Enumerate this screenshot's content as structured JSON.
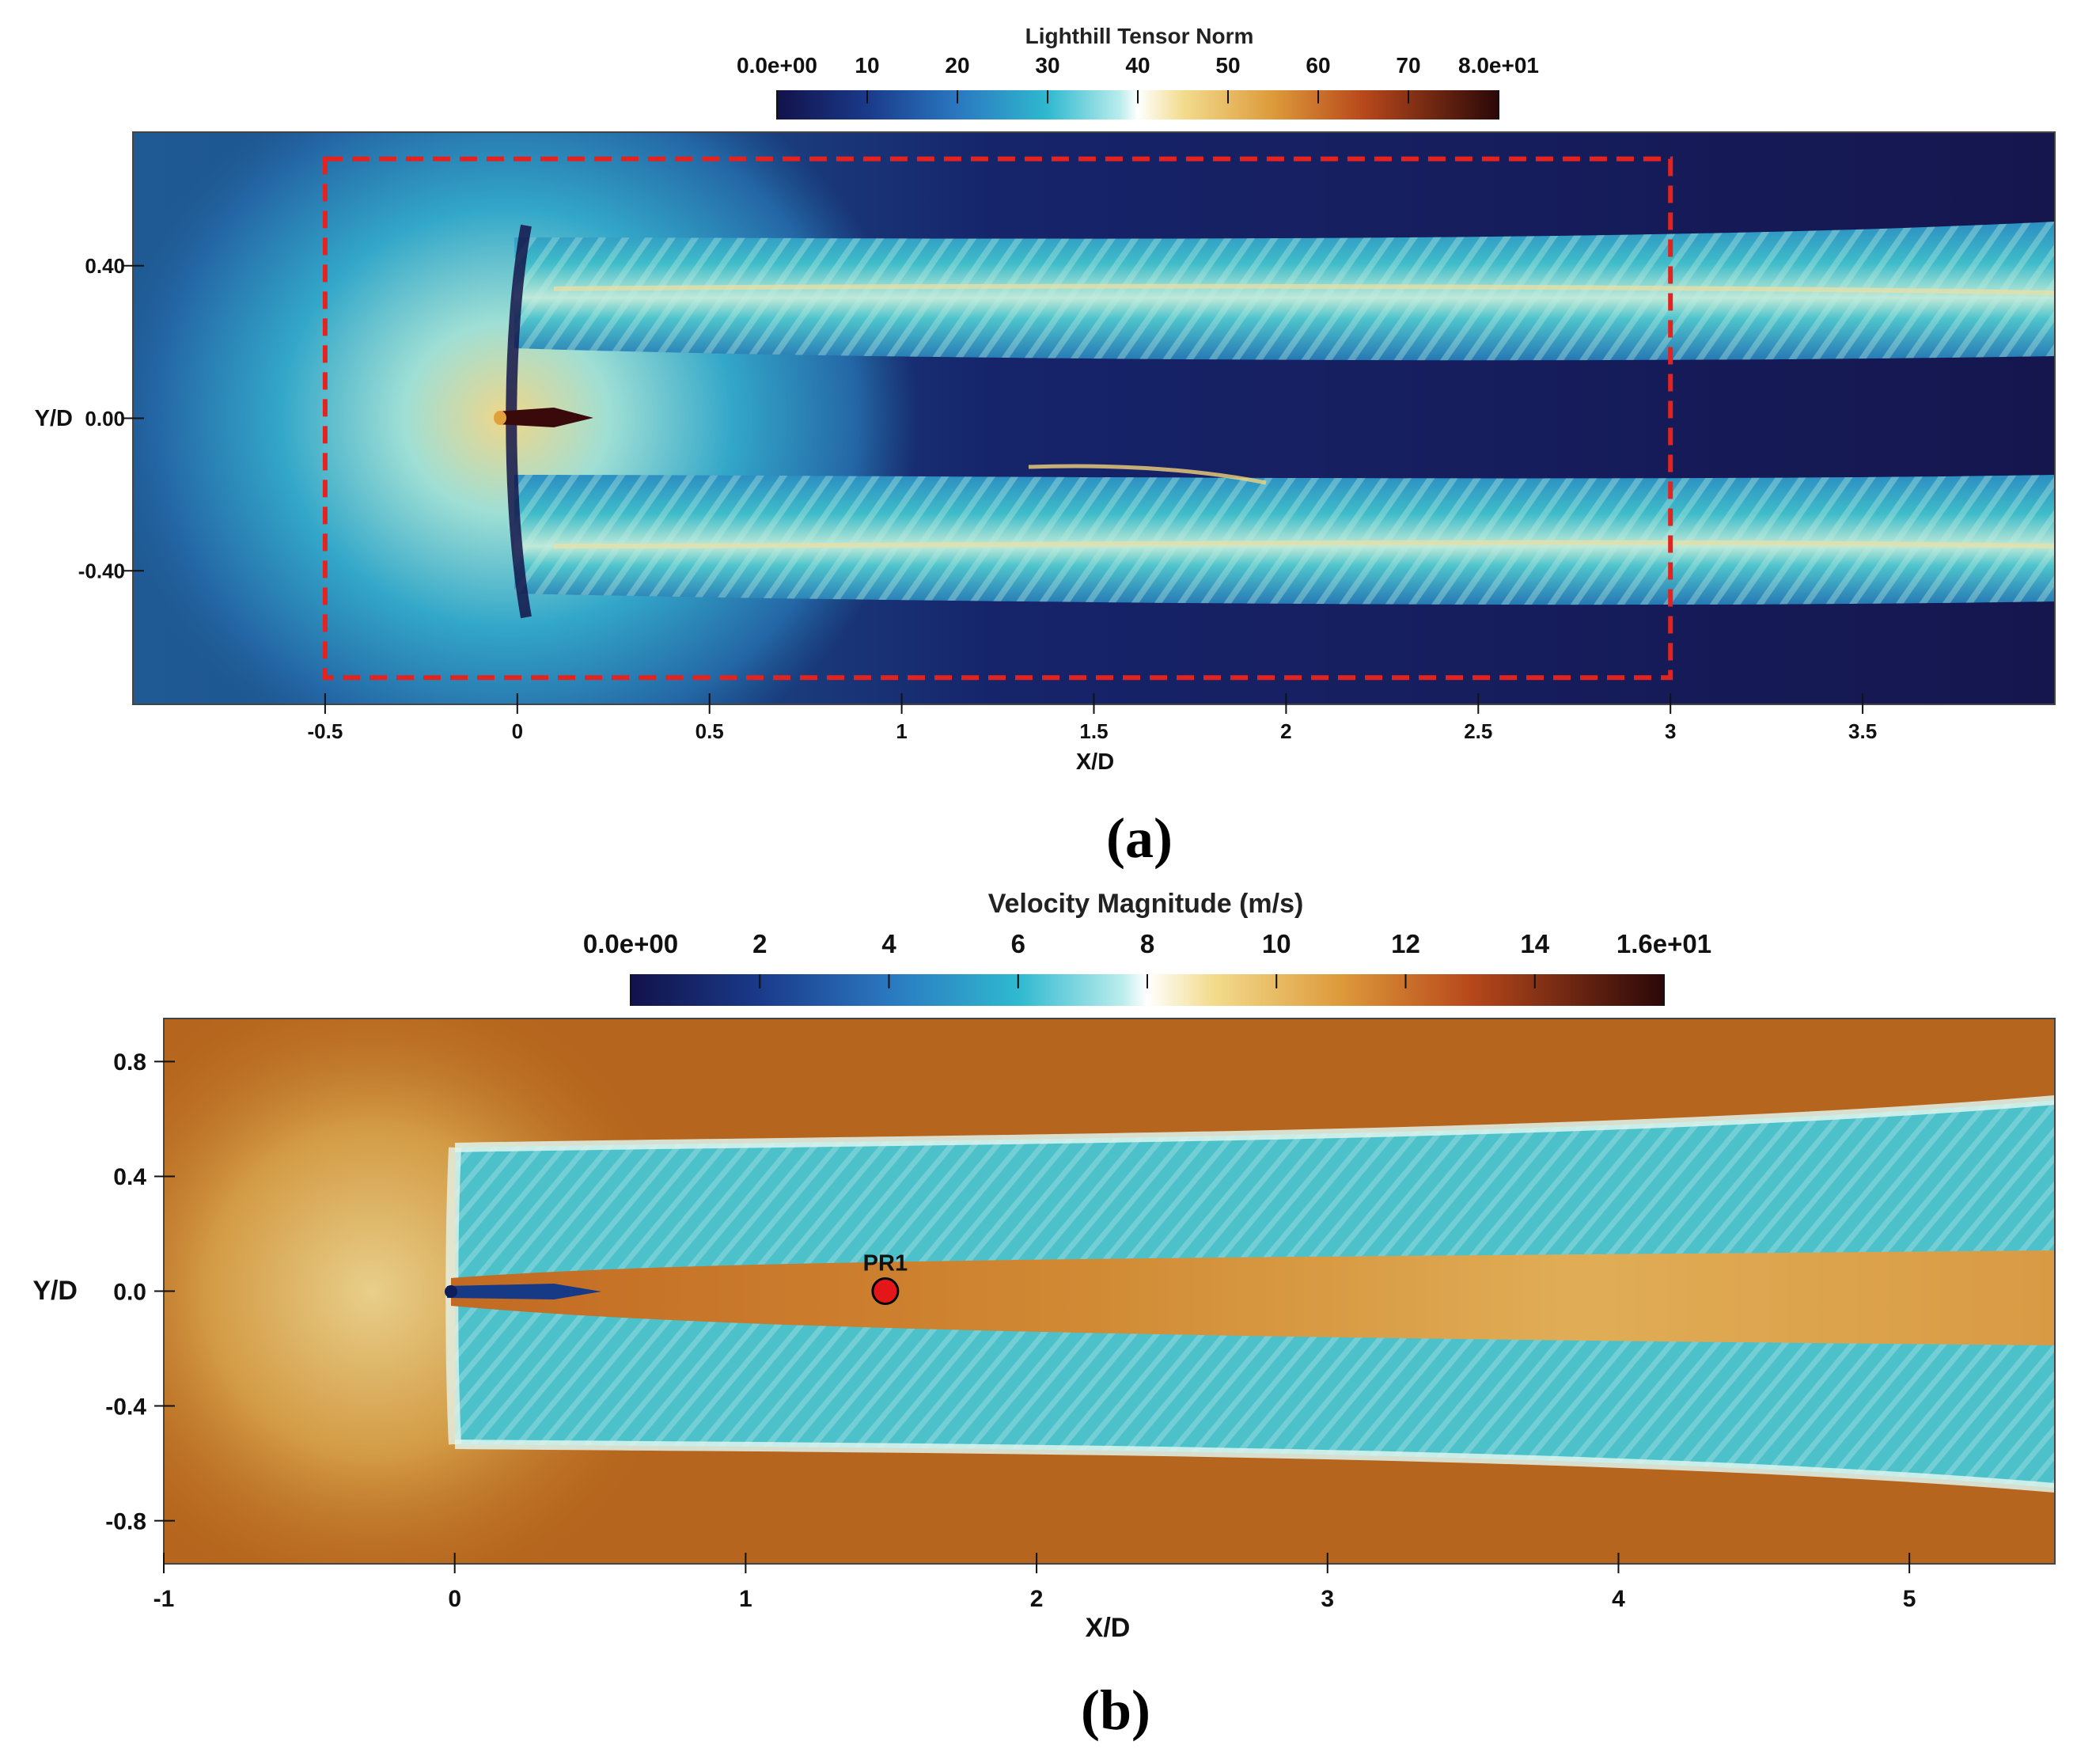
{
  "colors": {
    "field_dark": "#1c1e5c",
    "field_blue": "#1f5e98",
    "jet_cyan": "#3fbcc9",
    "jet_pale": "#9fe0d6",
    "orange_field": "#b5651d",
    "marker_red": "#e5161a",
    "box_red": "#e3231f"
  },
  "panels": [
    {
      "label": "(a)",
      "colorbar": {
        "title": "Lighthill Tensor Norm",
        "range": [
          0,
          80
        ],
        "tick_values": [
          0,
          10,
          20,
          30,
          40,
          50,
          60,
          70,
          80
        ],
        "tick_labels": [
          "0.0e+00",
          "10",
          "20",
          "30",
          "40",
          "50",
          "60",
          "70",
          "8.0e+01"
        ],
        "colormap": [
          {
            "v": 0,
            "c": "#12124a"
          },
          {
            "v": 10,
            "c": "#1a3a8a"
          },
          {
            "v": 20,
            "c": "#2a78c0"
          },
          {
            "v": 30,
            "c": "#2fb9cf"
          },
          {
            "v": 38,
            "c": "#b9ecec"
          },
          {
            "v": 40,
            "c": "#ffffff"
          },
          {
            "v": 45,
            "c": "#f3dc8e"
          },
          {
            "v": 55,
            "c": "#dd9a3a"
          },
          {
            "v": 65,
            "c": "#b8481c"
          },
          {
            "v": 80,
            "c": "#2a0808"
          }
        ]
      },
      "xlabel": "X/D",
      "x_range": [
        -1,
        4
      ],
      "x_ticks": [
        -0.5,
        0,
        0.5,
        1,
        1.5,
        2,
        2.5,
        3,
        3.5
      ],
      "x_tick_labels": [
        "-0.5",
        "0",
        "0.5",
        "1",
        "1.5",
        "2",
        "2.5",
        "3",
        "3.5"
      ],
      "ylabel": "Y/D",
      "y_range": [
        -0.75,
        0.75
      ],
      "y_ticks": [
        0.4,
        0.0,
        -0.4
      ],
      "y_tick_labels": [
        "0.40",
        "0.00",
        "-0.40"
      ],
      "dashed_box": {
        "x": [
          -0.5,
          3.0
        ],
        "y": [
          -0.68,
          0.68
        ]
      }
    },
    {
      "label": "(b)",
      "colorbar": {
        "title": "Velocity Magnitude (m/s)",
        "range": [
          0,
          16
        ],
        "tick_values": [
          0,
          2,
          4,
          6,
          8,
          10,
          12,
          14,
          16
        ],
        "tick_labels": [
          "0.0e+00",
          "2",
          "4",
          "6",
          "8",
          "10",
          "12",
          "14",
          "1.6e+01"
        ],
        "colormap": [
          {
            "v": 0,
            "c": "#12124a"
          },
          {
            "v": 2,
            "c": "#1a3a8a"
          },
          {
            "v": 4,
            "c": "#2a78c0"
          },
          {
            "v": 6,
            "c": "#2fb9cf"
          },
          {
            "v": 7.6,
            "c": "#b9ecec"
          },
          {
            "v": 8,
            "c": "#ffffff"
          },
          {
            "v": 9,
            "c": "#f3dc8e"
          },
          {
            "v": 11,
            "c": "#dd9a3a"
          },
          {
            "v": 13,
            "c": "#b8481c"
          },
          {
            "v": 16,
            "c": "#2a0808"
          }
        ]
      },
      "xlabel": "X/D",
      "x_range": [
        -1,
        5.5
      ],
      "x_ticks": [
        -1,
        0,
        1,
        2,
        3,
        4,
        5
      ],
      "x_tick_labels": [
        "-1",
        "0",
        "1",
        "2",
        "3",
        "4",
        "5"
      ],
      "ylabel": "Y/D",
      "y_range": [
        -0.95,
        0.95
      ],
      "y_ticks": [
        0.8,
        0.4,
        0.0,
        -0.4,
        -0.8
      ],
      "y_tick_labels": [
        "0.8",
        "0.4",
        "0.0",
        "-0.4",
        "-0.8"
      ],
      "probe": {
        "label": "PR1",
        "x": 1.48,
        "y": 0.0
      }
    }
  ]
}
